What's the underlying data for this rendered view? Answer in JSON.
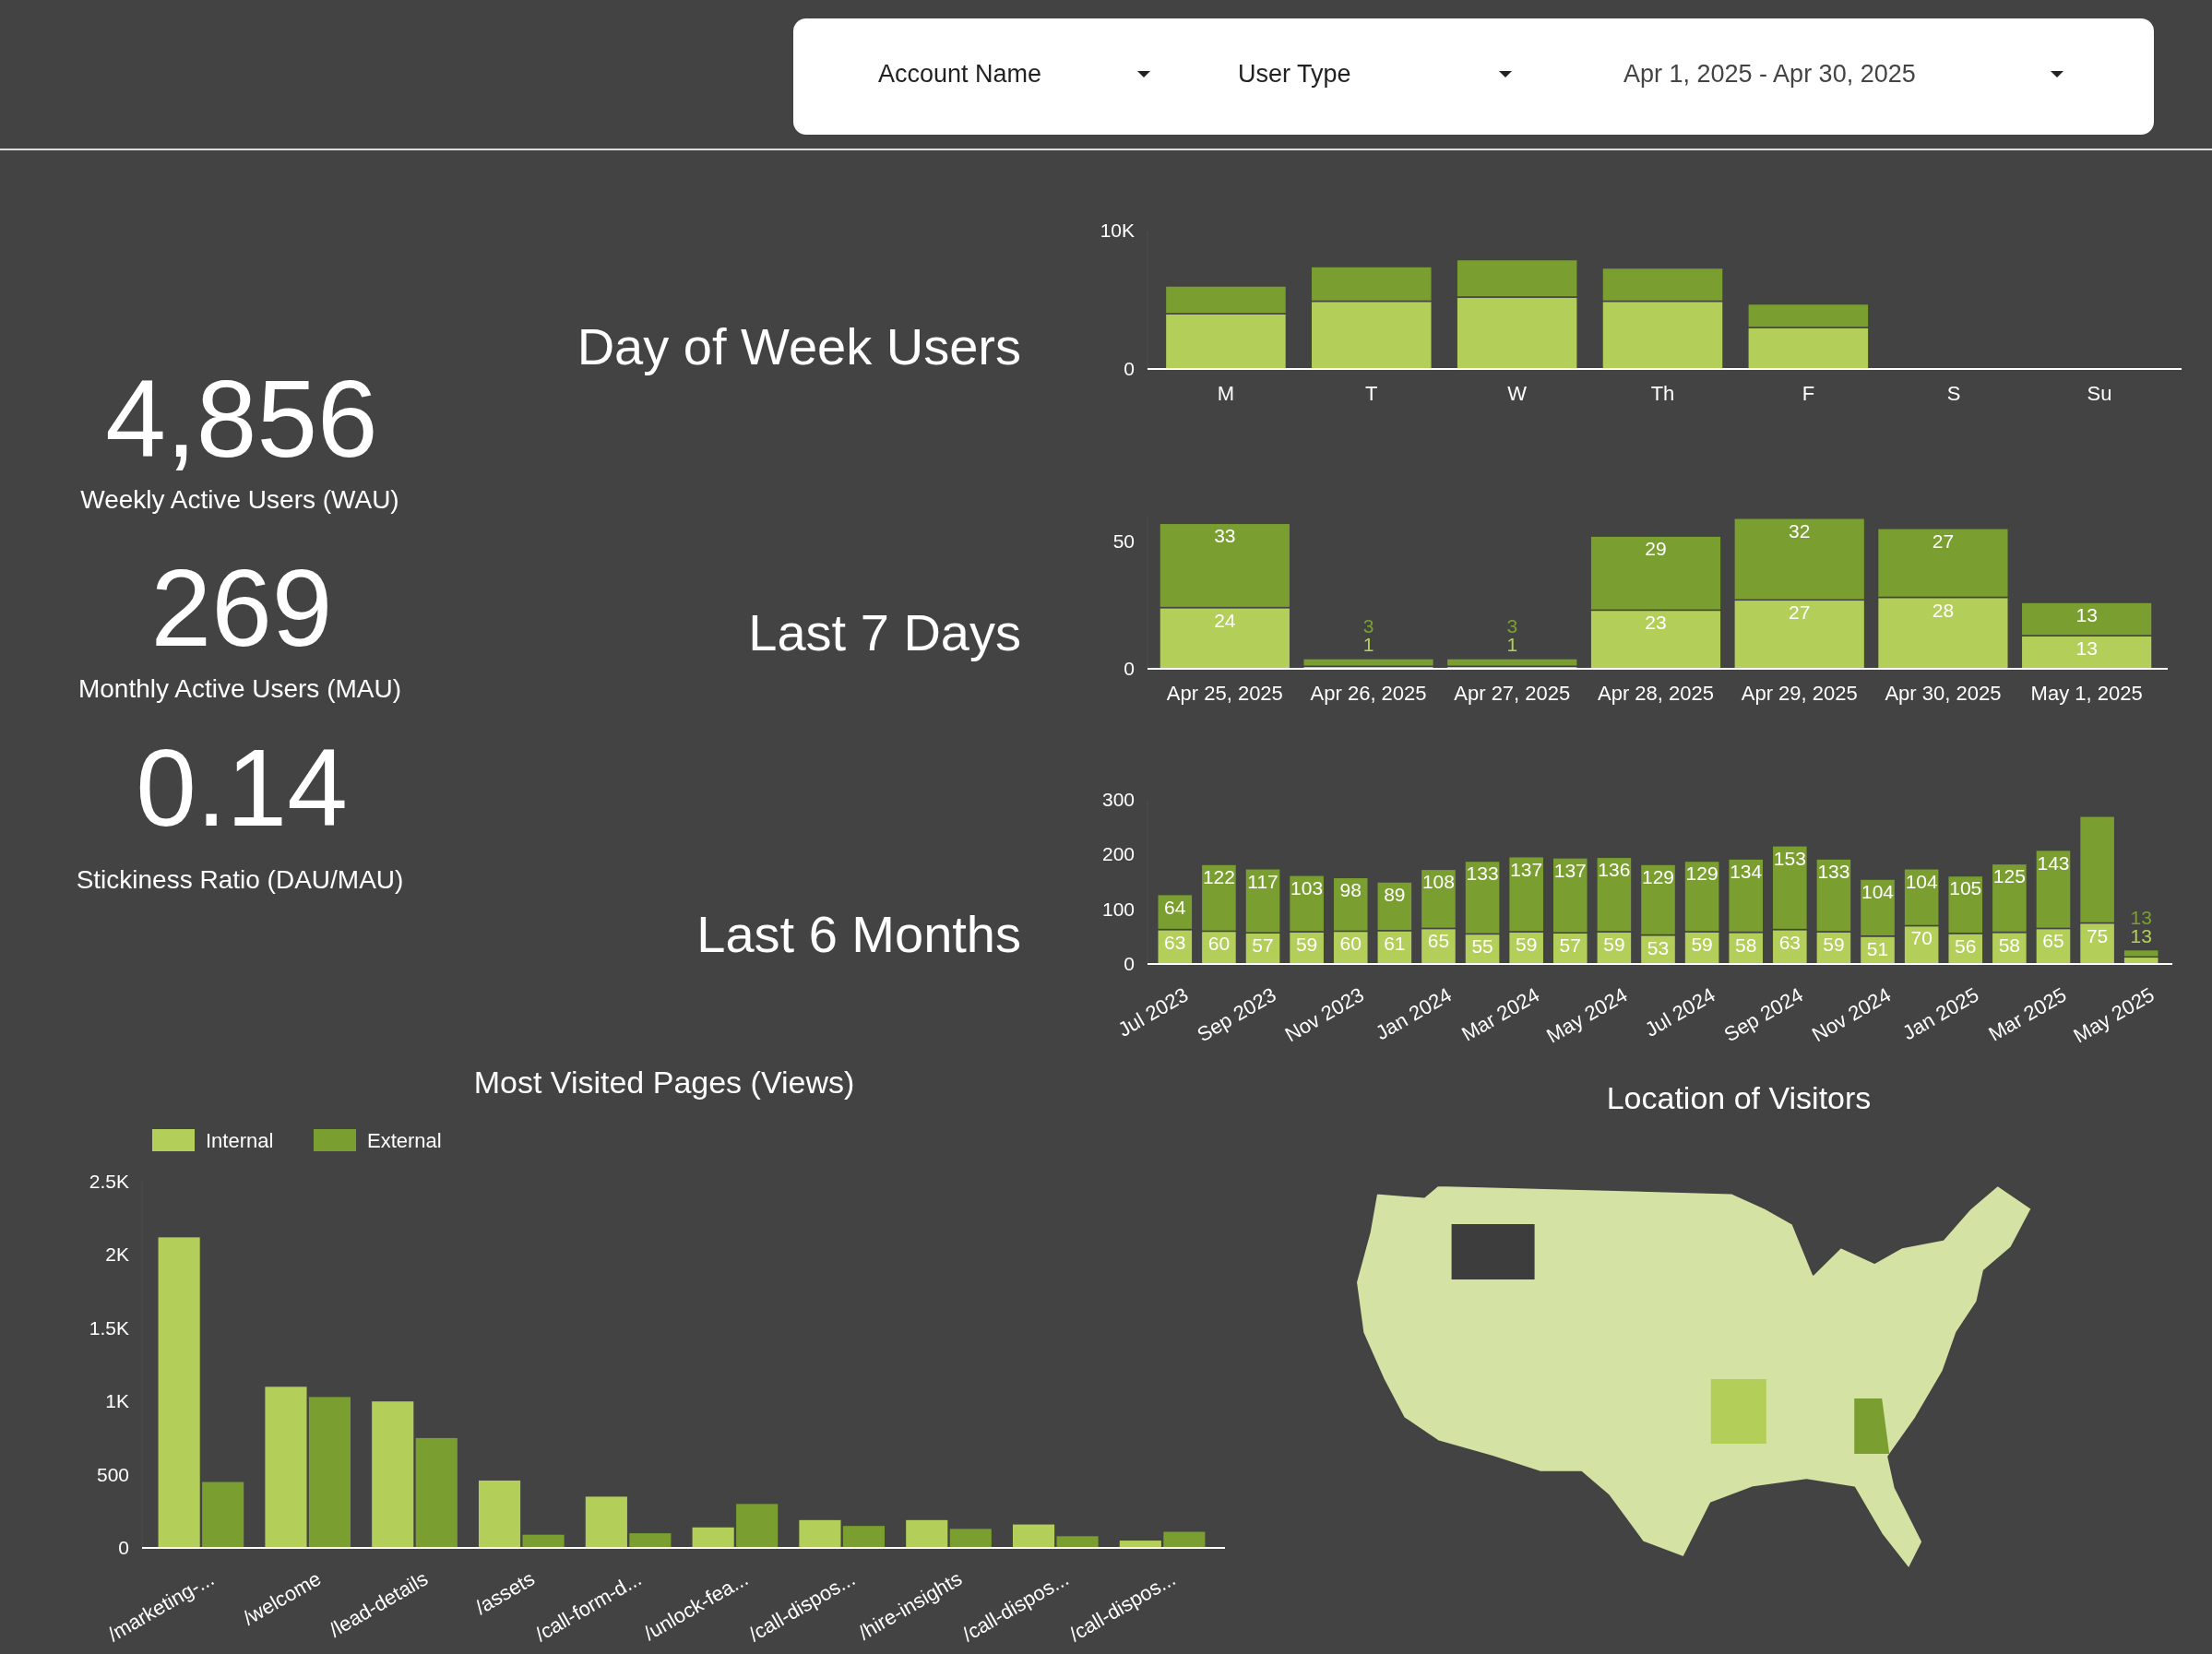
{
  "chart_data": [
    {
      "type": "other",
      "annotations": [
        "Account Name",
        "User Type",
        "Apr 1, 2025 - Apr 30, 2025"
      ]
    },
    {
      "type": "other",
      "annotations": [
        "4,856",
        "Weekly Active Users (WAU)",
        "269",
        "Monthly Active Users (MAU)",
        "0.14",
        "Stickiness Ratio (DAU/MAU)"
      ]
    },
    {
      "type": "bar",
      "title": "Day of Week Users",
      "categories": [
        "M",
        "T",
        "W",
        "Th",
        "F",
        "S",
        "Su"
      ],
      "stacked": true,
      "ylim": [
        0,
        10000
      ],
      "yticks": [
        0,
        {
          "value": 10000,
          "label": "10K"
        }
      ],
      "series": [
        {
          "color": "#b3cf5a",
          "values": [
            4000,
            4900,
            5200,
            4900,
            3000,
            null,
            null
          ]
        },
        {
          "color": "#7a9f30",
          "values": [
            2000,
            2500,
            2700,
            2400,
            1700,
            null,
            null
          ]
        }
      ]
    },
    {
      "type": "bar",
      "title": "Last 7 Days",
      "categories": [
        "Apr 25, 2025",
        "Apr 26, 2025",
        "Apr 27, 2025",
        "Apr 28, 2025",
        "Apr 29, 2025",
        "Apr 30, 2025",
        "May 1, 2025"
      ],
      "stacked": true,
      "ylim": [
        0,
        60
      ],
      "yticks": [
        0,
        50
      ],
      "data_labels": true,
      "series": [
        {
          "color": "#b3cf5a",
          "values": [
            24,
            1,
            1,
            23,
            27,
            28,
            13
          ]
        },
        {
          "color": "#7a9f30",
          "values": [
            33,
            3,
            3,
            29,
            32,
            27,
            13
          ]
        }
      ]
    },
    {
      "type": "bar",
      "title": "Last 6 Months",
      "categories": [
        "Jul 2023",
        null,
        "Sep 2023",
        null,
        "Nov 2023",
        null,
        "Jan 2024",
        null,
        "Mar 2024",
        null,
        "May 2024",
        null,
        "Jul 2024",
        null,
        "Sep 2024",
        null,
        "Nov 2024",
        null,
        "Jan 2025",
        null,
        "Mar 2025",
        null,
        "May 2025"
      ],
      "stacked": true,
      "ylim": [
        0,
        300
      ],
      "yticks": [
        0,
        100,
        200,
        300
      ],
      "series": [
        {
          "color": "#b3cf5a",
          "values": [
            63,
            60,
            57,
            59,
            60,
            61,
            65,
            55,
            59,
            57,
            59,
            53,
            59,
            58,
            63,
            59,
            51,
            70,
            56,
            58,
            65,
            75,
            13
          ],
          "value_labels": [
            "63",
            "60",
            "57",
            "59",
            "60",
            "61",
            "65",
            "55",
            "59",
            "57",
            "59",
            "53",
            "59",
            "58",
            "63",
            "59",
            "51",
            "70",
            "56",
            "58",
            "65",
            "75",
            "13"
          ]
        },
        {
          "color": "#7a9f30",
          "values": [
            64,
            122,
            117,
            103,
            98,
            89,
            108,
            133,
            137,
            137,
            136,
            129,
            129,
            134,
            153,
            133,
            104,
            104,
            105,
            125,
            143,
            195,
            13
          ],
          "value_labels": [
            "64",
            "122",
            "117",
            "103",
            "98",
            "89",
            "108",
            "133",
            "137",
            "137",
            "136",
            "129",
            "129",
            "134",
            "153",
            "133",
            "104",
            "104",
            "105",
            "125",
            "143",
            null,
            "13"
          ]
        }
      ]
    },
    {
      "type": "bar",
      "title": "Most Visited Pages (Views)",
      "categories": [
        "/marketing-...",
        "/welcome",
        "/lead-details",
        "/assets",
        "/call-form-d...",
        "/unlock-fea...",
        "/call-dispos...",
        "/hire-insights",
        "/call-dispos...",
        "/call-dispos..."
      ],
      "ylim": [
        0,
        2500
      ],
      "yticks": [
        0,
        500,
        {
          "value": 1000,
          "label": "1K"
        },
        {
          "value": 1500,
          "label": "1.5K"
        },
        {
          "value": 2000,
          "label": "2K"
        },
        {
          "value": 2500,
          "label": "2.5K"
        }
      ],
      "legend": "top left",
      "series": [
        {
          "name": "Internal",
          "color": "#b3cf5a",
          "values": [
            2120,
            1100,
            1000,
            460,
            350,
            140,
            190,
            190,
            160,
            50
          ]
        },
        {
          "name": "External",
          "color": "#7a9f30",
          "values": [
            450,
            1030,
            750,
            90,
            100,
            300,
            150,
            130,
            80,
            110
          ]
        }
      ]
    },
    {
      "type": "other",
      "title": "Location of Visitors"
    }
  ]
}
